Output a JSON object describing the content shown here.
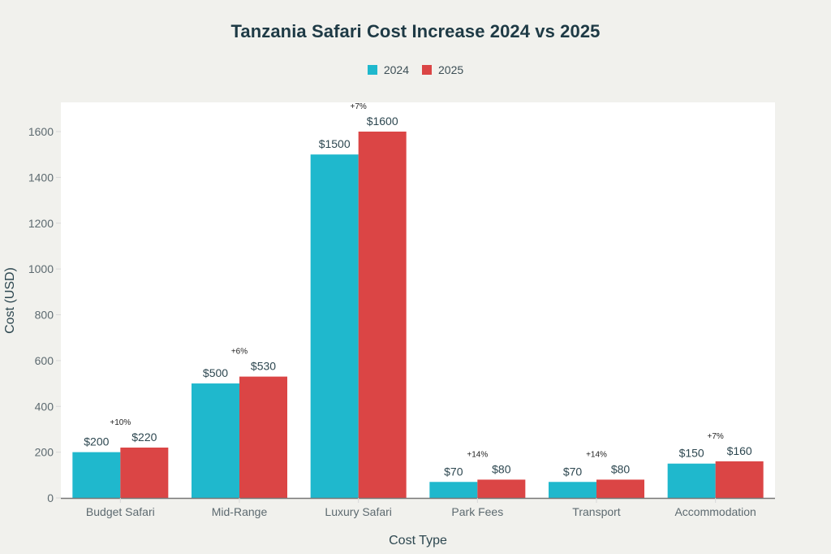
{
  "chart_data": {
    "type": "bar",
    "title": "Tanzania Safari Cost Increase 2024 vs 2025",
    "xlabel": "Cost Type",
    "ylabel": "Cost (USD)",
    "ylim": [
      0,
      1740
    ],
    "yticks": [
      0,
      200,
      400,
      600,
      800,
      1000,
      1200,
      1400,
      1600
    ],
    "grid": false,
    "legend_position": "top-center",
    "categories": [
      "Budget Safari",
      "Mid-Range",
      "Luxury Safari",
      "Park Fees",
      "Transport",
      "Accommodation"
    ],
    "series": [
      {
        "name": "2024",
        "color": "#1fb8cd",
        "values": [
          200,
          500,
          1500,
          70,
          70,
          150
        ],
        "labels": [
          "$200",
          "$500",
          "$1500",
          "$70",
          "$70",
          "$150"
        ]
      },
      {
        "name": "2025",
        "color": "#db4545",
        "values": [
          220,
          530,
          1600,
          80,
          80,
          160
        ],
        "labels": [
          "$220",
          "$530",
          "$1600",
          "$80",
          "$80",
          "$160"
        ]
      }
    ],
    "annotations": [
      "+10%",
      "+6%",
      "+7%",
      "+14%",
      "+14%",
      "+7%"
    ]
  }
}
